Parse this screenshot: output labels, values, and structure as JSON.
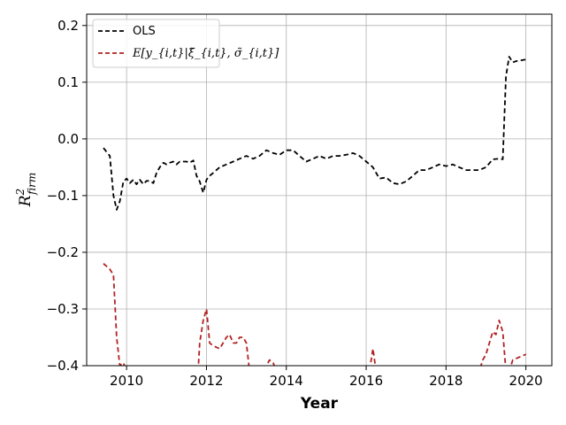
{
  "chart_data": {
    "type": "line",
    "xlabel": "Year",
    "ylabel_main": "R",
    "ylabel_sup": "2",
    "ylabel_sub": "firm",
    "xlim": [
      2009.0,
      2020.65
    ],
    "ylim": [
      -0.4,
      0.22
    ],
    "xticks": [
      2010,
      2012,
      2014,
      2016,
      2018,
      2020
    ],
    "xtick_labels": [
      "2010",
      "2012",
      "2014",
      "2016",
      "2018",
      "2020"
    ],
    "yticks": [
      0.2,
      0.1,
      0.0,
      -0.1,
      -0.2,
      -0.3,
      -0.4
    ],
    "ytick_labels": [
      "0.2",
      "0.1",
      "0.0",
      "−0.1",
      "−0.2",
      "−0.3",
      "−0.4"
    ],
    "grid": true,
    "legend_position": "upper-left",
    "series": [
      {
        "name": "OLS",
        "color": "#000000",
        "x": [
          2009.42,
          2009.58,
          2009.67,
          2009.75,
          2009.83,
          2009.92,
          2010.0,
          2010.08,
          2010.17,
          2010.25,
          2010.33,
          2010.42,
          2010.5,
          2010.58,
          2010.67,
          2010.75,
          2010.83,
          2010.92,
          2011.0,
          2011.08,
          2011.17,
          2011.25,
          2011.33,
          2011.42,
          2011.5,
          2011.58,
          2011.67,
          2011.75,
          2011.83,
          2011.92,
          2012.0,
          2012.08,
          2012.17,
          2012.33,
          2012.5,
          2012.67,
          2012.83,
          2013.0,
          2013.17,
          2013.33,
          2013.5,
          2013.67,
          2013.83,
          2014.0,
          2014.17,
          2014.33,
          2014.5,
          2014.67,
          2014.83,
          2015.0,
          2015.17,
          2015.33,
          2015.5,
          2015.67,
          2015.83,
          2016.0,
          2016.17,
          2016.33,
          2016.5,
          2016.67,
          2016.83,
          2017.0,
          2017.17,
          2017.33,
          2017.5,
          2017.67,
          2017.83,
          2018.0,
          2018.17,
          2018.33,
          2018.5,
          2018.67,
          2018.83,
          2019.0,
          2019.17,
          2019.33,
          2019.42,
          2019.5,
          2019.58,
          2019.67,
          2019.75,
          2019.83,
          2020.0
        ],
        "y": [
          -0.016,
          -0.03,
          -0.1,
          -0.125,
          -0.11,
          -0.075,
          -0.07,
          -0.078,
          -0.072,
          -0.08,
          -0.072,
          -0.08,
          -0.074,
          -0.074,
          -0.078,
          -0.06,
          -0.05,
          -0.042,
          -0.045,
          -0.042,
          -0.04,
          -0.045,
          -0.04,
          -0.04,
          -0.04,
          -0.042,
          -0.038,
          -0.065,
          -0.075,
          -0.095,
          -0.072,
          -0.065,
          -0.06,
          -0.05,
          -0.045,
          -0.04,
          -0.035,
          -0.03,
          -0.035,
          -0.03,
          -0.02,
          -0.025,
          -0.028,
          -0.02,
          -0.02,
          -0.03,
          -0.04,
          -0.035,
          -0.03,
          -0.035,
          -0.03,
          -0.03,
          -0.028,
          -0.025,
          -0.03,
          -0.04,
          -0.05,
          -0.07,
          -0.068,
          -0.078,
          -0.08,
          -0.075,
          -0.065,
          -0.055,
          -0.055,
          -0.05,
          -0.045,
          -0.048,
          -0.045,
          -0.05,
          -0.055,
          -0.055,
          -0.055,
          -0.05,
          -0.036,
          -0.035,
          -0.036,
          0.11,
          0.145,
          0.135,
          0.137,
          0.138,
          0.14
        ]
      },
      {
        "name": "E[y_{i,t}|ξ̃_{i,t}, σ̃_{i,t}]",
        "color": "#b22222",
        "x": [
          2009.42,
          2009.58,
          2009.67,
          2009.75,
          2009.83,
          2009.92,
          2010.0,
          2011.79,
          2011.83,
          2011.92,
          2012.0,
          2012.08,
          2012.17,
          2012.33,
          2012.5,
          2012.58,
          2012.67,
          2012.75,
          2012.83,
          2012.92,
          2013.0,
          2013.08,
          2013.25,
          2013.42,
          2013.58,
          2013.67,
          2013.75,
          2016.08,
          2016.17,
          2016.25,
          2018.83,
          2018.92,
          2019.0,
          2019.17,
          2019.25,
          2019.33,
          2019.42,
          2019.5,
          2019.58,
          2019.67,
          2019.83,
          2020.0
        ],
        "y": [
          -0.22,
          -0.23,
          -0.24,
          -0.35,
          -0.4,
          -0.395,
          -0.41,
          -0.41,
          -0.36,
          -0.32,
          -0.3,
          -0.36,
          -0.365,
          -0.37,
          -0.35,
          -0.345,
          -0.36,
          -0.36,
          -0.35,
          -0.35,
          -0.36,
          -0.41,
          -0.41,
          -0.41,
          -0.39,
          -0.395,
          -0.41,
          -0.41,
          -0.37,
          -0.41,
          -0.41,
          -0.39,
          -0.38,
          -0.34,
          -0.345,
          -0.32,
          -0.34,
          -0.41,
          -0.41,
          -0.39,
          -0.385,
          -0.38
        ]
      }
    ]
  }
}
